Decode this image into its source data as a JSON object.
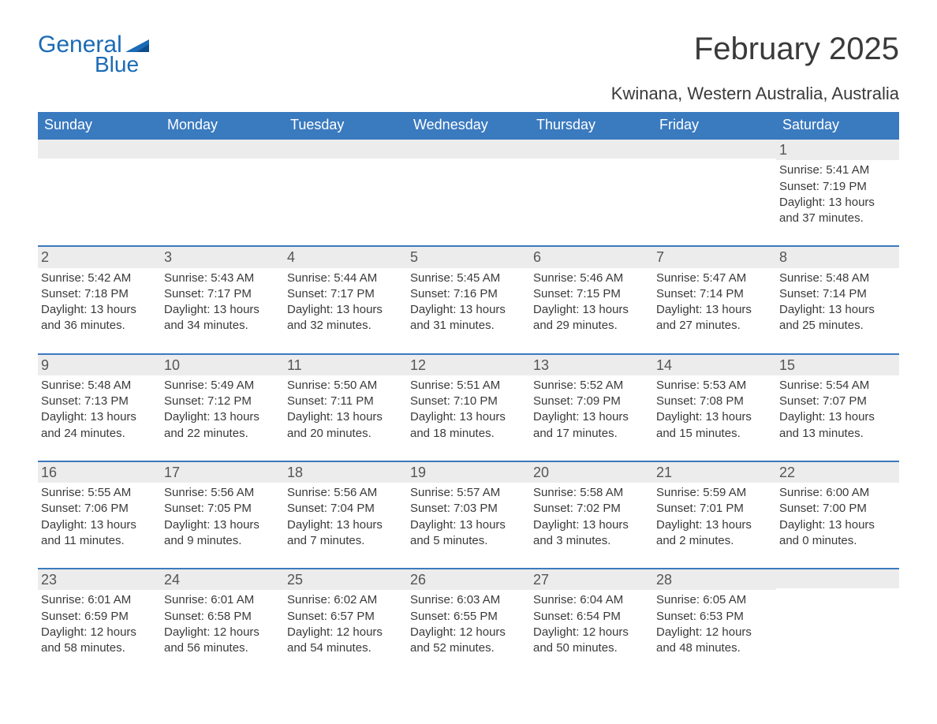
{
  "logo": {
    "word1": "General",
    "word2": "Blue"
  },
  "title": "February 2025",
  "location": "Kwinana, Western Australia, Australia",
  "colors": {
    "header_bg": "#3a7abf",
    "header_text": "#ffffff",
    "row_border": "#3a7abf",
    "daynum_bg": "#ececec",
    "text": "#3a3a3a",
    "logo": "#1b6bb5",
    "page_bg": "#ffffff"
  },
  "day_headers": [
    "Sunday",
    "Monday",
    "Tuesday",
    "Wednesday",
    "Thursday",
    "Friday",
    "Saturday"
  ],
  "weeks": [
    [
      null,
      null,
      null,
      null,
      null,
      null,
      {
        "n": "1",
        "sr": "Sunrise: 5:41 AM",
        "ss": "Sunset: 7:19 PM",
        "dl": "Daylight: 13 hours and 37 minutes."
      }
    ],
    [
      {
        "n": "2",
        "sr": "Sunrise: 5:42 AM",
        "ss": "Sunset: 7:18 PM",
        "dl": "Daylight: 13 hours and 36 minutes."
      },
      {
        "n": "3",
        "sr": "Sunrise: 5:43 AM",
        "ss": "Sunset: 7:17 PM",
        "dl": "Daylight: 13 hours and 34 minutes."
      },
      {
        "n": "4",
        "sr": "Sunrise: 5:44 AM",
        "ss": "Sunset: 7:17 PM",
        "dl": "Daylight: 13 hours and 32 minutes."
      },
      {
        "n": "5",
        "sr": "Sunrise: 5:45 AM",
        "ss": "Sunset: 7:16 PM",
        "dl": "Daylight: 13 hours and 31 minutes."
      },
      {
        "n": "6",
        "sr": "Sunrise: 5:46 AM",
        "ss": "Sunset: 7:15 PM",
        "dl": "Daylight: 13 hours and 29 minutes."
      },
      {
        "n": "7",
        "sr": "Sunrise: 5:47 AM",
        "ss": "Sunset: 7:14 PM",
        "dl": "Daylight: 13 hours and 27 minutes."
      },
      {
        "n": "8",
        "sr": "Sunrise: 5:48 AM",
        "ss": "Sunset: 7:14 PM",
        "dl": "Daylight: 13 hours and 25 minutes."
      }
    ],
    [
      {
        "n": "9",
        "sr": "Sunrise: 5:48 AM",
        "ss": "Sunset: 7:13 PM",
        "dl": "Daylight: 13 hours and 24 minutes."
      },
      {
        "n": "10",
        "sr": "Sunrise: 5:49 AM",
        "ss": "Sunset: 7:12 PM",
        "dl": "Daylight: 13 hours and 22 minutes."
      },
      {
        "n": "11",
        "sr": "Sunrise: 5:50 AM",
        "ss": "Sunset: 7:11 PM",
        "dl": "Daylight: 13 hours and 20 minutes."
      },
      {
        "n": "12",
        "sr": "Sunrise: 5:51 AM",
        "ss": "Sunset: 7:10 PM",
        "dl": "Daylight: 13 hours and 18 minutes."
      },
      {
        "n": "13",
        "sr": "Sunrise: 5:52 AM",
        "ss": "Sunset: 7:09 PM",
        "dl": "Daylight: 13 hours and 17 minutes."
      },
      {
        "n": "14",
        "sr": "Sunrise: 5:53 AM",
        "ss": "Sunset: 7:08 PM",
        "dl": "Daylight: 13 hours and 15 minutes."
      },
      {
        "n": "15",
        "sr": "Sunrise: 5:54 AM",
        "ss": "Sunset: 7:07 PM",
        "dl": "Daylight: 13 hours and 13 minutes."
      }
    ],
    [
      {
        "n": "16",
        "sr": "Sunrise: 5:55 AM",
        "ss": "Sunset: 7:06 PM",
        "dl": "Daylight: 13 hours and 11 minutes."
      },
      {
        "n": "17",
        "sr": "Sunrise: 5:56 AM",
        "ss": "Sunset: 7:05 PM",
        "dl": "Daylight: 13 hours and 9 minutes."
      },
      {
        "n": "18",
        "sr": "Sunrise: 5:56 AM",
        "ss": "Sunset: 7:04 PM",
        "dl": "Daylight: 13 hours and 7 minutes."
      },
      {
        "n": "19",
        "sr": "Sunrise: 5:57 AM",
        "ss": "Sunset: 7:03 PM",
        "dl": "Daylight: 13 hours and 5 minutes."
      },
      {
        "n": "20",
        "sr": "Sunrise: 5:58 AM",
        "ss": "Sunset: 7:02 PM",
        "dl": "Daylight: 13 hours and 3 minutes."
      },
      {
        "n": "21",
        "sr": "Sunrise: 5:59 AM",
        "ss": "Sunset: 7:01 PM",
        "dl": "Daylight: 13 hours and 2 minutes."
      },
      {
        "n": "22",
        "sr": "Sunrise: 6:00 AM",
        "ss": "Sunset: 7:00 PM",
        "dl": "Daylight: 13 hours and 0 minutes."
      }
    ],
    [
      {
        "n": "23",
        "sr": "Sunrise: 6:01 AM",
        "ss": "Sunset: 6:59 PM",
        "dl": "Daylight: 12 hours and 58 minutes."
      },
      {
        "n": "24",
        "sr": "Sunrise: 6:01 AM",
        "ss": "Sunset: 6:58 PM",
        "dl": "Daylight: 12 hours and 56 minutes."
      },
      {
        "n": "25",
        "sr": "Sunrise: 6:02 AM",
        "ss": "Sunset: 6:57 PM",
        "dl": "Daylight: 12 hours and 54 minutes."
      },
      {
        "n": "26",
        "sr": "Sunrise: 6:03 AM",
        "ss": "Sunset: 6:55 PM",
        "dl": "Daylight: 12 hours and 52 minutes."
      },
      {
        "n": "27",
        "sr": "Sunrise: 6:04 AM",
        "ss": "Sunset: 6:54 PM",
        "dl": "Daylight: 12 hours and 50 minutes."
      },
      {
        "n": "28",
        "sr": "Sunrise: 6:05 AM",
        "ss": "Sunset: 6:53 PM",
        "dl": "Daylight: 12 hours and 48 minutes."
      },
      null
    ]
  ]
}
